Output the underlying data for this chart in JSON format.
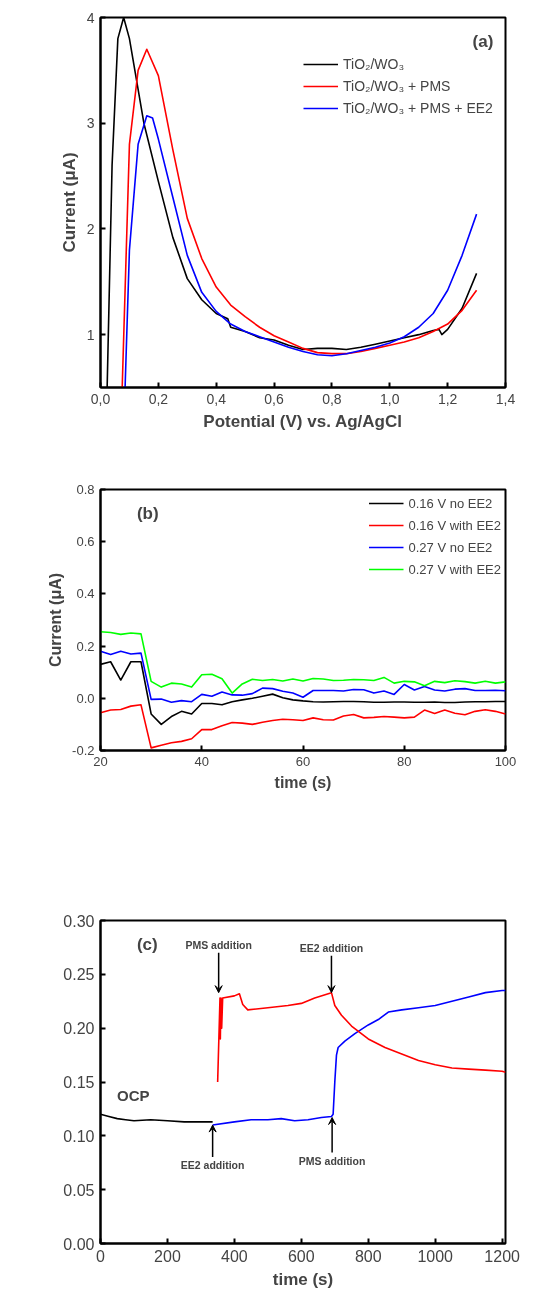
{
  "chart_data": [
    {
      "type": "line",
      "xlabel": "Potential (V) vs. Ag/AgCl",
      "ylabel": "Current (μA)",
      "xlim": [
        0,
        1.4
      ],
      "ylim": [
        0.5,
        4
      ],
      "xticks": [
        {
          "value": 0,
          "label": "0,0"
        },
        {
          "value": 0.2,
          "label": "0,2"
        },
        {
          "value": 0.4,
          "label": "0,4"
        },
        {
          "value": 0.6,
          "label": "0,6"
        },
        {
          "value": 0.8,
          "label": "0,8"
        },
        {
          "value": 1.0,
          "label": "1,0"
        },
        {
          "value": 1.2,
          "label": "1,2"
        },
        {
          "value": 1.4,
          "label": "1,4"
        }
      ],
      "yticks": [
        1,
        2,
        3,
        4
      ],
      "grid": false,
      "legend": "top right",
      "annotations": [
        "(a)"
      ],
      "series": [
        {
          "name": "TiO₂/WO₃",
          "color": "#000000",
          "x": [
            0.023,
            0.04,
            0.06,
            0.08,
            0.1,
            0.15,
            0.2,
            0.25,
            0.3,
            0.35,
            0.4,
            0.44,
            0.45,
            0.5,
            0.55,
            0.6,
            0.65,
            0.7,
            0.75,
            0.8,
            0.85,
            0.9,
            0.95,
            1.0,
            1.05,
            1.1,
            1.15,
            1.17,
            1.18,
            1.2,
            1.25,
            1.3
          ],
          "values": [
            0.5,
            2.6,
            3.8,
            4.0,
            3.8,
            3.0,
            2.45,
            1.92,
            1.53,
            1.33,
            1.2,
            1.15,
            1.07,
            1.03,
            0.97,
            0.95,
            0.9,
            0.86,
            0.87,
            0.87,
            0.86,
            0.88,
            0.91,
            0.94,
            0.97,
            1.0,
            1.04,
            1.05,
            1.0,
            1.05,
            1.25,
            1.58
          ]
        },
        {
          "name": "TiO₂/WO₃ + PMS",
          "color": "#ff0000",
          "x": [
            0.075,
            0.1,
            0.13,
            0.16,
            0.2,
            0.25,
            0.3,
            0.35,
            0.4,
            0.45,
            0.5,
            0.55,
            0.6,
            0.65,
            0.7,
            0.75,
            0.8,
            0.85,
            0.9,
            0.95,
            1.0,
            1.05,
            1.1,
            1.15,
            1.2,
            1.25,
            1.3
          ],
          "values": [
            0.5,
            2.8,
            3.5,
            3.7,
            3.45,
            2.75,
            2.1,
            1.72,
            1.45,
            1.28,
            1.17,
            1.07,
            0.99,
            0.93,
            0.87,
            0.83,
            0.82,
            0.82,
            0.84,
            0.87,
            0.9,
            0.93,
            0.97,
            1.03,
            1.1,
            1.23,
            1.42
          ]
        },
        {
          "name": "TiO₂/WO₃ + PMS + EE2",
          "color": "#0000ff",
          "x": [
            0.085,
            0.1,
            0.13,
            0.16,
            0.18,
            0.2,
            0.25,
            0.3,
            0.35,
            0.4,
            0.45,
            0.5,
            0.55,
            0.6,
            0.65,
            0.7,
            0.75,
            0.8,
            0.85,
            0.9,
            0.95,
            1.0,
            1.05,
            1.1,
            1.15,
            1.2,
            1.25,
            1.3
          ],
          "values": [
            0.5,
            1.8,
            2.8,
            3.07,
            3.05,
            2.85,
            2.3,
            1.75,
            1.4,
            1.22,
            1.1,
            1.03,
            0.98,
            0.93,
            0.88,
            0.84,
            0.81,
            0.8,
            0.82,
            0.85,
            0.88,
            0.92,
            0.98,
            1.07,
            1.2,
            1.42,
            1.75,
            2.14
          ]
        }
      ]
    },
    {
      "type": "line",
      "xlabel": "time (s)",
      "ylabel": "Current (μA)",
      "xlim": [
        20,
        100
      ],
      "ylim": [
        -0.2,
        0.8
      ],
      "xticks": [
        20,
        40,
        60,
        80,
        100
      ],
      "yticks": [
        {
          "value": -0.2,
          "label": "-0.2"
        },
        {
          "value": 0,
          "label": "0.0"
        },
        0.2,
        0.4,
        0.6,
        0.8
      ],
      "grid": false,
      "legend": "top right",
      "annotations": [
        "(b)"
      ],
      "x": [
        20,
        22,
        24,
        26,
        28,
        30,
        32,
        34,
        36,
        38,
        40,
        42,
        44,
        46,
        48,
        50,
        52,
        54,
        56,
        58,
        60,
        62,
        64,
        66,
        68,
        70,
        72,
        74,
        76,
        78,
        80,
        82,
        84,
        86,
        88,
        90,
        92,
        94,
        96,
        98,
        100
      ],
      "series": [
        {
          "name": "0.16 V no EE2",
          "color": "#000000",
          "values": [
            0.13,
            0.14,
            0.07,
            0.14,
            0.14,
            -0.06,
            -0.1,
            -0.07,
            -0.05,
            -0.06,
            -0.02,
            -0.02,
            -0.025,
            -0.013,
            -0.006,
            0.0,
            0.008,
            0.016,
            0.002,
            -0.006,
            -0.01,
            -0.013,
            -0.014,
            -0.013,
            -0.012,
            -0.012,
            -0.013,
            -0.015,
            -0.015,
            -0.014,
            -0.014,
            -0.015,
            -0.015,
            -0.014,
            -0.016,
            -0.016,
            -0.014,
            -0.013,
            -0.013,
            -0.012,
            -0.012
          ]
        },
        {
          "name": "0.16 V with EE2",
          "color": "#ff0000",
          "values": [
            -0.055,
            -0.045,
            -0.043,
            -0.03,
            -0.025,
            -0.19,
            -0.18,
            -0.17,
            -0.165,
            -0.155,
            -0.12,
            -0.12,
            -0.105,
            -0.093,
            -0.095,
            -0.1,
            -0.092,
            -0.085,
            -0.08,
            -0.082,
            -0.085,
            -0.075,
            -0.082,
            -0.083,
            -0.068,
            -0.062,
            -0.075,
            -0.073,
            -0.07,
            -0.072,
            -0.075,
            -0.072,
            -0.045,
            -0.058,
            -0.045,
            -0.057,
            -0.063,
            -0.05,
            -0.044,
            -0.05,
            -0.06
          ]
        },
        {
          "name": "0.27 V no EE2",
          "color": "#0000ff",
          "values": [
            0.18,
            0.168,
            0.18,
            0.17,
            0.173,
            -0.004,
            -0.003,
            -0.015,
            -0.009,
            -0.013,
            0.015,
            0.008,
            0.024,
            0.013,
            0.012,
            0.018,
            0.039,
            0.037,
            0.027,
            0.02,
            0.004,
            0.03,
            0.03,
            0.03,
            0.028,
            0.034,
            0.033,
            0.02,
            0.028,
            0.015,
            0.053,
            0.032,
            0.045,
            0.032,
            0.028,
            0.035,
            0.037,
            0.03,
            0.03,
            0.031,
            0.029
          ]
        },
        {
          "name": "0.27 V with EE2",
          "color": "#00ff00",
          "values": [
            0.255,
            0.252,
            0.245,
            0.25,
            0.247,
            0.065,
            0.043,
            0.058,
            0.055,
            0.043,
            0.09,
            0.092,
            0.075,
            0.02,
            0.055,
            0.073,
            0.068,
            0.072,
            0.066,
            0.074,
            0.066,
            0.076,
            0.074,
            0.068,
            0.069,
            0.072,
            0.071,
            0.068,
            0.08,
            0.058,
            0.065,
            0.063,
            0.048,
            0.065,
            0.06,
            0.067,
            0.064,
            0.058,
            0.065,
            0.058,
            0.063
          ]
        }
      ]
    },
    {
      "type": "line",
      "xlabel": "time (s)",
      "xlim": [
        0,
        1210
      ],
      "ylim": [
        0,
        0.3
      ],
      "xticks": [
        0,
        200,
        400,
        600,
        800,
        1000,
        1200
      ],
      "yticks": [
        {
          "value": 0,
          "label": "0.00"
        },
        {
          "value": 0.05,
          "label": "0.05"
        },
        {
          "value": 0.1,
          "label": "0.10"
        },
        {
          "value": 0.15,
          "label": "0.15"
        },
        {
          "value": 0.2,
          "label": "0.20"
        },
        {
          "value": 0.25,
          "label": "0.25"
        },
        {
          "value": 0.3,
          "label": "0.30"
        }
      ],
      "grid": false,
      "annotations": [
        "(c)",
        {
          "text": "OCP",
          "x": 98,
          "y": 0.115
        },
        {
          "text": "PMS addition",
          "x": 353,
          "y": 0.233
        },
        {
          "text": "EE2 addition",
          "x": 690,
          "y": 0.233
        },
        {
          "text": "EE2 addition",
          "x": 335,
          "y": 0.11
        },
        {
          "text": "PMS addition",
          "x": 692,
          "y": 0.117
        }
      ],
      "series": [
        {
          "color": "#000000",
          "x": [
            0,
            25,
            50,
            75,
            100,
            150,
            200,
            250,
            300,
            335
          ],
          "values": [
            0.12,
            0.118,
            0.116,
            0.115,
            0.114,
            0.115,
            0.114,
            0.113,
            0.113,
            0.113
          ]
        },
        {
          "color": "#0000ff",
          "x": [
            335,
            400,
            450,
            500,
            540,
            580,
            620,
            660,
            690,
            695,
            700,
            705,
            710,
            730,
            760,
            800,
            830,
            860,
            900,
            950,
            1000,
            1050,
            1100,
            1150,
            1200,
            1210
          ],
          "values": [
            0.11,
            0.113,
            0.115,
            0.115,
            0.116,
            0.114,
            0.115,
            0.117,
            0.118,
            0.12,
            0.15,
            0.175,
            0.182,
            0.188,
            0.195,
            0.203,
            0.208,
            0.215,
            0.217,
            0.219,
            0.221,
            0.225,
            0.229,
            0.233,
            0.235,
            0.235
          ]
        },
        {
          "color": "#ff0000",
          "x": [
            350,
            357,
            358,
            360,
            362,
            365,
            400,
            415,
            425,
            440,
            500,
            560,
            600,
            640,
            690,
            700,
            720,
            750,
            800,
            850,
            900,
            950,
            1000,
            1050,
            1100,
            1150,
            1200,
            1210
          ],
          "values": [
            0.15,
            0.228,
            0.19,
            0.228,
            0.2,
            0.228,
            0.23,
            0.232,
            0.222,
            0.217,
            0.219,
            0.221,
            0.223,
            0.228,
            0.233,
            0.221,
            0.212,
            0.202,
            0.19,
            0.182,
            0.176,
            0.17,
            0.166,
            0.163,
            0.162,
            0.161,
            0.16,
            0.159
          ]
        }
      ]
    }
  ]
}
